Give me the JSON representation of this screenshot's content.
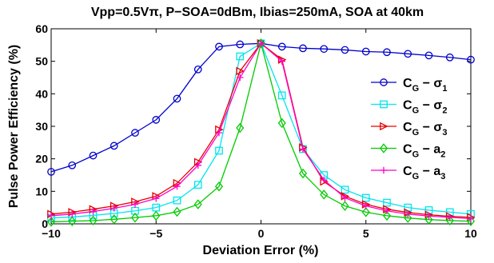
{
  "chart_data": {
    "type": "line",
    "title": "Vpp=0.5Vπ, P−SOA=0dBm, Ibias=250mA, SOA at 40km",
    "xlabel": "Deviation Error (%)",
    "ylabel": "Pulse Power Efficiency (%)",
    "xlim": [
      -10,
      10
    ],
    "ylim": [
      0,
      60
    ],
    "xticks": [
      -10,
      -5,
      0,
      5,
      10
    ],
    "yticks": [
      0,
      10,
      20,
      30,
      40,
      50,
      60
    ],
    "xtick_labels": [
      "−10",
      "−5",
      "0",
      "5",
      "10"
    ],
    "ytick_labels": [
      "0",
      "10",
      "20",
      "30",
      "40",
      "50",
      "60"
    ],
    "grid": false,
    "legend_position": "right",
    "x": [
      -10,
      -9,
      -8,
      -7,
      -6,
      -5,
      -4,
      -3,
      -2,
      -1,
      0,
      1,
      2,
      3,
      4,
      5,
      6,
      7,
      8,
      9,
      10
    ],
    "series": [
      {
        "name": "C_G − σ_1",
        "legend_main": "C",
        "legend_sub": "G",
        "legend_rest": " − σ",
        "legend_sub2": "1",
        "color": "#0000cc",
        "marker": "circle",
        "values": [
          16,
          18,
          21,
          24,
          28,
          32,
          38.5,
          47.5,
          54.5,
          55.2,
          55.5,
          54.5,
          54,
          53.8,
          53.5,
          53,
          52.8,
          52.3,
          51.8,
          51.2,
          50.5
        ]
      },
      {
        "name": "C_G − σ_2",
        "legend_main": "C",
        "legend_sub": "G",
        "legend_rest": " − σ",
        "legend_sub2": "2",
        "color": "#00e5ee",
        "marker": "square",
        "values": [
          1.8,
          2.1,
          2.6,
          3.2,
          4,
          5,
          7.2,
          12,
          22.5,
          51.5,
          55.5,
          39.5,
          23,
          15,
          10.5,
          8,
          6.5,
          5,
          4.2,
          3.6,
          3
        ]
      },
      {
        "name": "C_G − σ_3",
        "legend_main": "C",
        "legend_sub": "G",
        "legend_rest": " − σ",
        "legend_sub2": "3",
        "color": "#e60000",
        "marker": "triangle-right",
        "values": [
          3,
          3.6,
          4.5,
          5.5,
          6.8,
          8.5,
          12.5,
          19,
          29,
          47,
          55.5,
          50.5,
          23.5,
          13,
          8.5,
          6,
          4.5,
          3.5,
          2.8,
          2.3,
          2
        ]
      },
      {
        "name": "C_G − a_2",
        "legend_main": "C",
        "legend_sub": "G",
        "legend_rest": " − a",
        "legend_sub2": "2",
        "color": "#00cc00",
        "marker": "diamond",
        "values": [
          0.6,
          0.8,
          1,
          1.4,
          1.9,
          2.5,
          3.7,
          6,
          11.5,
          29.5,
          55.5,
          31,
          15.5,
          9,
          5.5,
          3.6,
          2.5,
          1.8,
          1.3,
          1,
          0.8
        ]
      },
      {
        "name": "C_G − a_3",
        "legend_main": "C",
        "legend_sub": "G",
        "legend_rest": " − a",
        "legend_sub2": "3",
        "color": "#ff00cc",
        "marker": "plus",
        "values": [
          2.5,
          3,
          3.8,
          4.8,
          6,
          7.8,
          11.5,
          18,
          28,
          45,
          55.5,
          50,
          23,
          13.5,
          8,
          5.5,
          4,
          3,
          2.4,
          2,
          1.6
        ]
      }
    ]
  }
}
